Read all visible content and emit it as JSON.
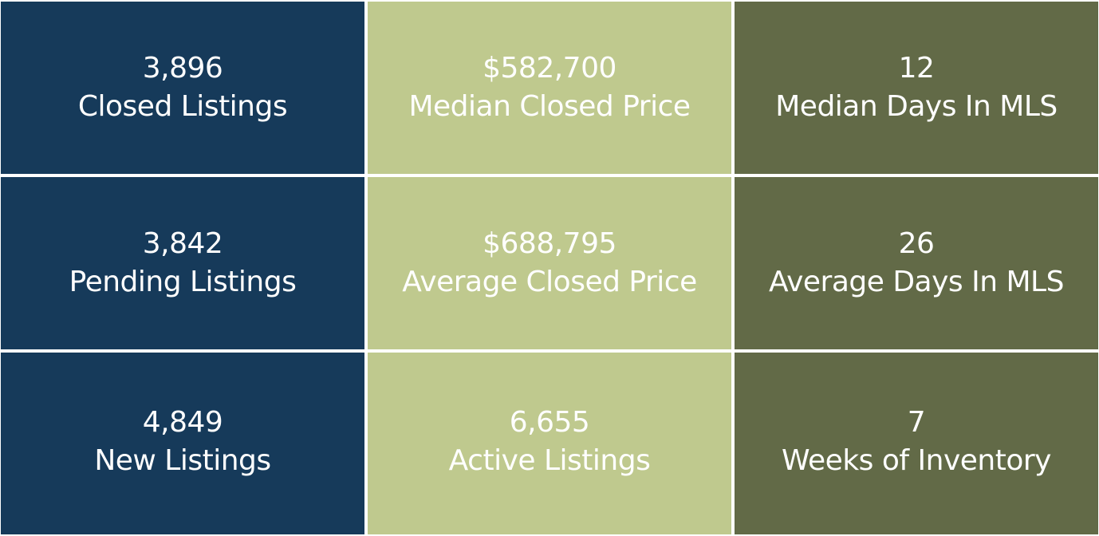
{
  "colors": {
    "navy": "#163a5a",
    "lime": "#bfc98e",
    "olive": "#626a47",
    "text": "#ffffff"
  },
  "metrics": [
    [
      {
        "value": "3,896",
        "label": "Closed Listings"
      },
      {
        "value": "$582,700",
        "label": "Median Closed Price"
      },
      {
        "value": "12",
        "label": "Median Days In MLS"
      }
    ],
    [
      {
        "value": "3,842",
        "label": "Pending Listings"
      },
      {
        "value": "$688,795",
        "label": "Average Closed Price"
      },
      {
        "value": "26",
        "label": "Average Days In MLS"
      }
    ],
    [
      {
        "value": "4,849",
        "label": "New Listings"
      },
      {
        "value": "6,655",
        "label": "Active Listings"
      },
      {
        "value": "7",
        "label": "Weeks of Inventory"
      }
    ]
  ]
}
